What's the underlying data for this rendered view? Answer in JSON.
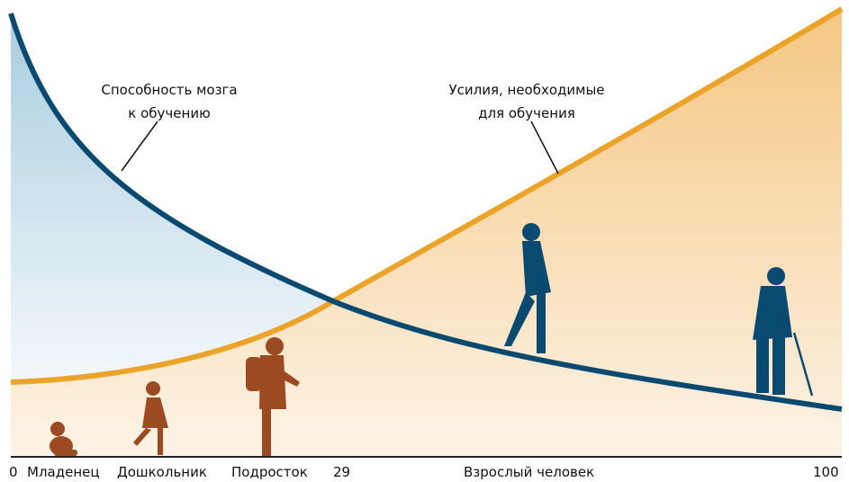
{
  "annotations": {
    "brain": [
      "Способность мозга",
      "к обучению"
    ],
    "effort": [
      "Усилия, необходимые",
      "для обучения"
    ]
  },
  "axis": {
    "labels": [
      "0",
      "Младенец",
      "Дошкольник",
      "Подросток",
      "29",
      "Взрослый человек",
      "100"
    ]
  }
}
